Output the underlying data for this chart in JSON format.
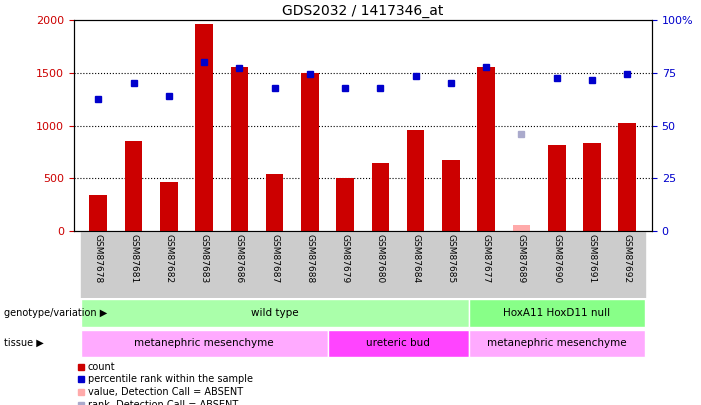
{
  "title": "GDS2032 / 1417346_at",
  "samples": [
    "GSM87678",
    "GSM87681",
    "GSM87682",
    "GSM87683",
    "GSM87686",
    "GSM87687",
    "GSM87688",
    "GSM87679",
    "GSM87680",
    "GSM87684",
    "GSM87685",
    "GSM87677",
    "GSM87689",
    "GSM87690",
    "GSM87691",
    "GSM87692"
  ],
  "counts": [
    340,
    850,
    460,
    1960,
    1560,
    540,
    1500,
    500,
    640,
    960,
    670,
    1560,
    60,
    820,
    830,
    1020
  ],
  "ranks": [
    1250,
    1400,
    1280,
    1600,
    1550,
    1360,
    1490,
    1360,
    1360,
    1470,
    1400,
    1560,
    920,
    1450,
    1430,
    1490
  ],
  "absent_count_idx": [
    12
  ],
  "absent_rank_idx": [
    12
  ],
  "count_color": "#cc0000",
  "rank_color": "#0000cc",
  "absent_count_color": "#ffaaaa",
  "absent_rank_color": "#aaaacc",
  "ylim_left": [
    0,
    2000
  ],
  "ylim_right": [
    0,
    100
  ],
  "yticks_left": [
    0,
    500,
    1000,
    1500,
    2000
  ],
  "yticks_right": [
    0,
    25,
    50,
    75,
    100
  ],
  "ytick_labels_right": [
    "0",
    "25",
    "50",
    "75",
    "100%"
  ],
  "genotype_groups": [
    {
      "label": "wild type",
      "start": 0,
      "end": 11,
      "color": "#aaffaa"
    },
    {
      "label": "HoxA11 HoxD11 null",
      "start": 11,
      "end": 16,
      "color": "#88ff88"
    }
  ],
  "tissue_groups": [
    {
      "label": "metanephric mesenchyme",
      "start": 0,
      "end": 7,
      "color": "#ffaaff"
    },
    {
      "label": "ureteric bud",
      "start": 7,
      "end": 11,
      "color": "#ff44ff"
    },
    {
      "label": "metanephric mesenchyme",
      "start": 11,
      "end": 16,
      "color": "#ffaaff"
    }
  ],
  "legend_items": [
    {
      "label": "count",
      "color": "#cc0000"
    },
    {
      "label": "percentile rank within the sample",
      "color": "#0000cc"
    },
    {
      "label": "value, Detection Call = ABSENT",
      "color": "#ffaaaa"
    },
    {
      "label": "rank, Detection Call = ABSENT",
      "color": "#aaaacc"
    }
  ],
  "bar_width": 0.5,
  "left_label_color": "#cc0000",
  "right_label_color": "#0000cc"
}
